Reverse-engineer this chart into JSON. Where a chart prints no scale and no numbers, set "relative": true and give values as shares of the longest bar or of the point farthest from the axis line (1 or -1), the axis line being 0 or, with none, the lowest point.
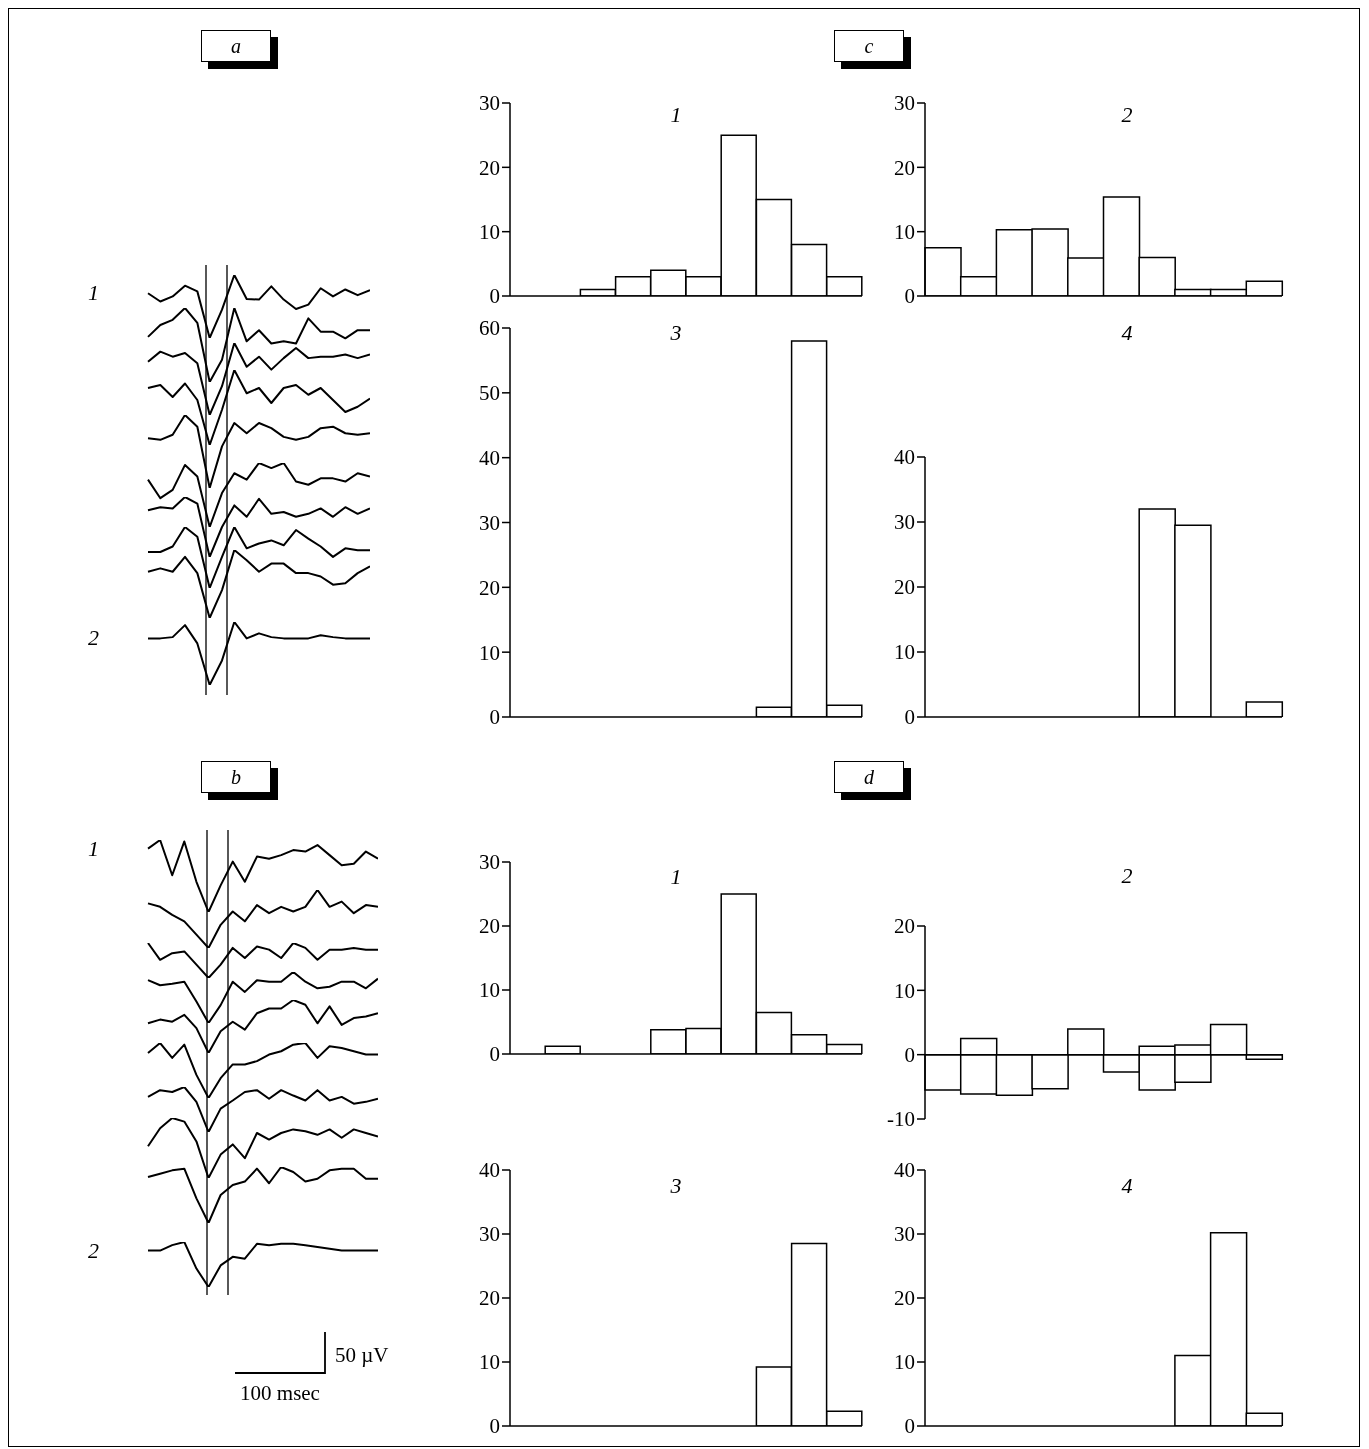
{
  "chart_data": [
    {
      "type": "line",
      "title": "a",
      "relative": true,
      "categories": [
        null,
        null,
        null,
        null,
        null,
        null,
        null,
        null,
        null,
        null,
        null,
        null,
        null,
        null,
        null,
        null,
        null,
        null,
        null
      ],
      "series": [
        {
          "name": "1",
          "color": "#000000",
          "values": [
            0.71,
            0.58,
            0.66,
            0.83,
            0.74,
            0,
            0.45,
            1,
            0.62,
            0.61,
            0.82,
            0.61,
            0.46,
            0.53,
            0.79,
            0.66,
            0.77,
            0.68,
            0.76
          ]
        }
      ]
    },
    {
      "type": "line",
      "relative": true,
      "categories": [
        null,
        null,
        null,
        null,
        null,
        null,
        null,
        null,
        null,
        null,
        null,
        null,
        null,
        null,
        null,
        null,
        null,
        null,
        null
      ],
      "series": [
        {
          "color": "#000000",
          "values": [
            0.61,
            0.77,
            0.84,
            1,
            0.8,
            0,
            0.3,
            1,
            0.55,
            0.7,
            0.52,
            0.55,
            0.52,
            0.86,
            0.68,
            0.68,
            0.59,
            0.7,
            0.7
          ]
        }
      ]
    },
    {
      "type": "line",
      "relative": true,
      "categories": [
        null,
        null,
        null,
        null,
        null,
        null,
        null,
        null,
        null,
        null,
        null,
        null,
        null,
        null,
        null,
        null,
        null,
        null,
        null
      ],
      "series": [
        {
          "color": "#000000",
          "values": [
            0.74,
            0.88,
            0.81,
            0.86,
            0.72,
            0,
            0.4,
            1,
            0.67,
            0.81,
            0.63,
            0.79,
            0.93,
            0.79,
            0.81,
            0.81,
            0.84,
            0.79,
            0.84
          ]
        }
      ]
    },
    {
      "type": "line",
      "relative": true,
      "categories": [
        null,
        null,
        null,
        null,
        null,
        null,
        null,
        null,
        null,
        null,
        null,
        null,
        null,
        null,
        null,
        null,
        null,
        null,
        null
      ],
      "series": [
        {
          "color": "#000000",
          "values": [
            0.76,
            0.8,
            0.64,
            0.82,
            0.6,
            0,
            0.47,
            1,
            0.69,
            0.76,
            0.56,
            0.76,
            0.8,
            0.67,
            0.76,
            0.6,
            0.44,
            0.51,
            0.62
          ]
        }
      ]
    },
    {
      "type": "line",
      "relative": true,
      "categories": [
        null,
        null,
        null,
        null,
        null,
        null,
        null,
        null,
        null,
        null,
        null,
        null,
        null,
        null,
        null,
        null,
        null,
        null,
        null
      ],
      "series": [
        {
          "color": "#000000",
          "values": [
            0.68,
            0.66,
            0.73,
            1,
            0.84,
            0,
            0.57,
            0.89,
            0.75,
            0.89,
            0.82,
            0.7,
            0.66,
            0.7,
            0.82,
            0.84,
            0.75,
            0.73,
            0.75
          ]
        }
      ]
    },
    {
      "type": "line",
      "relative": true,
      "categories": [
        null,
        null,
        null,
        null,
        null,
        null,
        null,
        null,
        null,
        null,
        null,
        null,
        null,
        null,
        null,
        null,
        null,
        null,
        null
      ],
      "series": [
        {
          "color": "#000000",
          "values": [
            0.74,
            0.45,
            0.58,
            0.97,
            0.79,
            0,
            0.53,
            0.84,
            0.74,
            1,
            0.92,
            1,
            0.71,
            0.66,
            0.76,
            0.76,
            0.71,
            0.84,
            0.79
          ]
        }
      ]
    },
    {
      "type": "line",
      "relative": true,
      "categories": [
        null,
        null,
        null,
        null,
        null,
        null,
        null,
        null,
        null,
        null,
        null,
        null,
        null,
        null,
        null,
        null,
        null,
        null,
        null
      ],
      "series": [
        {
          "color": "#000000",
          "values": [
            0.78,
            0.83,
            0.81,
            1,
            0.89,
            0,
            0.5,
            0.86,
            0.67,
            0.97,
            0.72,
            0.75,
            0.67,
            0.72,
            0.81,
            0.67,
            0.83,
            0.72,
            0.81
          ]
        }
      ]
    },
    {
      "type": "line",
      "relative": true,
      "categories": [
        null,
        null,
        null,
        null,
        null,
        null,
        null,
        null,
        null,
        null,
        null,
        null,
        null,
        null,
        null,
        null,
        null,
        null,
        null
      ],
      "series": [
        {
          "color": "#000000",
          "values": [
            0.59,
            0.59,
            0.68,
            1,
            0.84,
            0,
            0.51,
            1,
            0.65,
            0.73,
            0.78,
            0.7,
            0.95,
            0.81,
            0.68,
            0.51,
            0.65,
            0.62,
            0.62
          ]
        }
      ]
    },
    {
      "type": "line",
      "relative": true,
      "categories": [
        null,
        null,
        null,
        null,
        null,
        null,
        null,
        null,
        null,
        null,
        null,
        null,
        null,
        null,
        null,
        null,
        null,
        null,
        null
      ],
      "series": [
        {
          "color": "#000000",
          "values": [
            0.68,
            0.73,
            0.68,
            0.9,
            0.66,
            0,
            0.41,
            1,
            0.85,
            0.68,
            0.8,
            0.8,
            0.66,
            0.66,
            0.61,
            0.49,
            0.51,
            0.66,
            0.76
          ]
        }
      ]
    },
    {
      "type": "line",
      "relative": true,
      "categories": [
        null,
        null,
        null,
        null,
        null,
        null,
        null,
        null,
        null,
        null,
        null,
        null,
        null,
        null,
        null,
        null,
        null,
        null,
        null
      ],
      "series": [
        {
          "name": "2",
          "color": "#000000",
          "values": [
            0.74,
            0.74,
            0.76,
            0.95,
            0.66,
            0,
            0.39,
            1,
            0.74,
            0.82,
            0.76,
            0.74,
            0.74,
            0.74,
            0.79,
            0.76,
            0.74,
            0.74,
            0.74
          ]
        }
      ]
    },
    {
      "type": "bar",
      "title": "1",
      "annotations": [
        "c"
      ],
      "categories": [
        null,
        null,
        null,
        null,
        null,
        null,
        null,
        null,
        null,
        null
      ],
      "values": [
        0,
        0,
        1,
        3,
        4,
        3,
        25,
        15,
        8,
        3
      ],
      "color": "#ffffff",
      "ylim": [
        0,
        30
      ],
      "yticks": [
        0,
        10,
        20,
        30
      ]
    },
    {
      "type": "bar",
      "title": "2",
      "categories": [
        null,
        null,
        null,
        null,
        null,
        null,
        null,
        null,
        null,
        null
      ],
      "values": [
        7.5,
        3,
        10.3,
        10.4,
        5.9,
        15.4,
        6,
        1,
        1,
        2.3
      ],
      "color": "#ffffff",
      "ylim": [
        0,
        30
      ],
      "yticks": [
        0,
        10,
        20,
        30
      ]
    },
    {
      "type": "bar",
      "title": "3",
      "categories": [
        null,
        null,
        null,
        null,
        null,
        null,
        null,
        null,
        null,
        null
      ],
      "values": [
        0,
        0,
        0,
        0,
        0,
        0,
        0,
        1.5,
        58,
        1.8
      ],
      "color": "#ffffff",
      "ylim": [
        0,
        60
      ],
      "yticks": [
        0,
        10,
        20,
        30,
        40,
        50,
        60
      ]
    },
    {
      "type": "bar",
      "title": "4",
      "categories": [
        null,
        null,
        null,
        null,
        null,
        null,
        null,
        null,
        null,
        null
      ],
      "values": [
        0,
        0,
        0,
        0,
        0,
        0,
        32,
        29.5,
        0,
        2.3
      ],
      "color": "#ffffff",
      "ylim": [
        0,
        40
      ],
      "yticks": [
        0,
        10,
        20,
        30,
        40
      ]
    },
    {
      "type": "line",
      "title": "b",
      "relative": true,
      "categories": [
        null,
        null,
        null,
        null,
        null,
        null,
        null,
        null,
        null,
        null,
        null,
        null,
        null,
        null,
        null,
        null,
        null,
        null,
        null,
        null
      ],
      "series": [
        {
          "name": "1",
          "color": "#000000",
          "values": [
            0.88,
            1,
            0.51,
            0.98,
            0.42,
            0,
            0.37,
            0.7,
            0.42,
            0.77,
            0.74,
            0.79,
            0.86,
            0.84,
            0.93,
            0.79,
            0.65,
            0.67,
            0.84,
            0.74
          ]
        }
      ]
    },
    {
      "type": "line",
      "relative": true,
      "categories": [
        null,
        null,
        null,
        null,
        null,
        null,
        null,
        null,
        null,
        null,
        null,
        null,
        null,
        null,
        null,
        null,
        null,
        null,
        null,
        null
      ],
      "series": [
        {
          "color": "#000000",
          "values": [
            0.77,
            0.71,
            0.57,
            0.46,
            0.23,
            0,
            0.4,
            0.63,
            0.46,
            0.74,
            0.6,
            0.71,
            0.63,
            0.71,
            1,
            0.71,
            0.8,
            0.6,
            0.74,
            0.71
          ]
        }
      ]
    },
    {
      "type": "line",
      "relative": true,
      "categories": [
        null,
        null,
        null,
        null,
        null,
        null,
        null,
        null,
        null,
        null,
        null,
        null,
        null,
        null,
        null,
        null,
        null,
        null,
        null,
        null
      ],
      "series": [
        {
          "color": "#000000",
          "values": [
            1,
            0.52,
            0.71,
            0.76,
            0.38,
            0,
            0.38,
            0.86,
            0.57,
            0.9,
            0.81,
            0.57,
            1,
            0.86,
            0.52,
            0.81,
            0.81,
            0.86,
            0.81,
            0.81
          ]
        }
      ]
    },
    {
      "type": "line",
      "relative": true,
      "categories": [
        null,
        null,
        null,
        null,
        null,
        null,
        null,
        null,
        null,
        null,
        null,
        null,
        null,
        null,
        null,
        null,
        null,
        null,
        null,
        null
      ],
      "series": [
        {
          "color": "#000000",
          "values": [
            0.84,
            0.74,
            0.77,
            0.81,
            0.42,
            0,
            0.35,
            0.81,
            0.61,
            0.84,
            0.81,
            0.81,
            1,
            0.81,
            0.68,
            0.71,
            0.81,
            0.81,
            0.68,
            0.87
          ]
        }
      ]
    },
    {
      "type": "line",
      "relative": true,
      "categories": [
        null,
        null,
        null,
        null,
        null,
        null,
        null,
        null,
        null,
        null,
        null,
        null,
        null,
        null,
        null,
        null,
        null,
        null,
        null,
        null
      ],
      "series": [
        {
          "color": "#000000",
          "values": [
            0.56,
            0.63,
            0.59,
            0.72,
            0.47,
            0,
            0.41,
            0.59,
            0.44,
            0.75,
            0.84,
            0.84,
            1,
            0.91,
            0.56,
            0.88,
            0.53,
            0.66,
            0.69,
            0.75
          ]
        }
      ]
    },
    {
      "type": "line",
      "relative": true,
      "categories": [
        null,
        null,
        null,
        null,
        null,
        null,
        null,
        null,
        null,
        null,
        null,
        null,
        null,
        null,
        null,
        null,
        null,
        null,
        null,
        null
      ],
      "series": [
        {
          "color": "#000000",
          "values": [
            0.82,
            1,
            0.73,
            0.97,
            0.42,
            0,
            0.36,
            0.61,
            0.61,
            0.67,
            0.79,
            0.85,
            0.97,
            1,
            0.73,
            0.94,
            0.91,
            0.85,
            0.79,
            0.79
          ]
        }
      ]
    },
    {
      "type": "line",
      "relative": true,
      "categories": [
        null,
        null,
        null,
        null,
        null,
        null,
        null,
        null,
        null,
        null,
        null,
        null,
        null,
        null,
        null,
        null,
        null,
        null,
        null,
        null
      ],
      "series": [
        {
          "color": "#000000",
          "values": [
            0.78,
            0.93,
            0.89,
            1,
            0.67,
            0,
            0.52,
            0.7,
            0.89,
            0.93,
            0.74,
            0.93,
            0.81,
            0.7,
            0.93,
            0.7,
            0.78,
            0.63,
            0.67,
            0.74
          ]
        }
      ]
    },
    {
      "type": "line",
      "relative": true,
      "categories": [
        null,
        null,
        null,
        null,
        null,
        null,
        null,
        null,
        null,
        null,
        null,
        null,
        null,
        null,
        null,
        null,
        null,
        null,
        null,
        null
      ],
      "series": [
        {
          "color": "#000000",
          "values": [
            0.53,
            0.83,
            1,
            0.94,
            0.61,
            0,
            0.39,
            0.56,
            0.33,
            0.75,
            0.64,
            0.75,
            0.81,
            0.78,
            0.72,
            0.81,
            0.67,
            0.81,
            0.75,
            0.69
          ]
        }
      ]
    },
    {
      "type": "line",
      "relative": true,
      "categories": [
        null,
        null,
        null,
        null,
        null,
        null,
        null,
        null,
        null,
        null,
        null,
        null,
        null,
        null,
        null,
        null,
        null,
        null,
        null,
        null
      ],
      "series": [
        {
          "color": "#000000",
          "values": [
            0.82,
            0.88,
            0.94,
            0.97,
            0.44,
            0,
            0.5,
            0.68,
            0.74,
            0.97,
            0.71,
            1,
            0.91,
            0.74,
            0.79,
            0.94,
            0.97,
            0.97,
            0.79,
            0.79
          ]
        }
      ]
    },
    {
      "type": "line",
      "relative": true,
      "annotations": [
        "50 µV",
        "100 msec"
      ],
      "categories": [
        null,
        null,
        null,
        null,
        null,
        null,
        null,
        null,
        null,
        null,
        null,
        null,
        null,
        null,
        null,
        null,
        null,
        null,
        null,
        null
      ],
      "series": [
        {
          "name": "2",
          "color": "#000000",
          "values": [
            0.81,
            0.81,
            0.93,
            1,
            0.41,
            0,
            0.48,
            0.67,
            0.63,
            0.96,
            0.93,
            0.96,
            0.96,
            0.93,
            0.89,
            0.85,
            0.81,
            0.81,
            0.81,
            0.81
          ]
        }
      ]
    },
    {
      "type": "bar",
      "title": "1",
      "annotations": [
        "d"
      ],
      "categories": [
        null,
        null,
        null,
        null,
        null,
        null,
        null,
        null,
        null,
        null
      ],
      "values": [
        0,
        1.2,
        0,
        0,
        3.8,
        4,
        25,
        6.5,
        3,
        1.5
      ],
      "color": "#ffffff",
      "ylim": [
        0,
        30
      ],
      "yticks": [
        0,
        10,
        20,
        30
      ]
    },
    {
      "type": "bar",
      "title": "2",
      "stacked": true,
      "categories": [
        null,
        null,
        null,
        null,
        null,
        null,
        null,
        null,
        null,
        null
      ],
      "ylim": [
        -10,
        20
      ],
      "yticks": [
        -10,
        0,
        10,
        20
      ],
      "series": [
        {
          "color": "#ffffff",
          "values": [
            null,
            2.5,
            null,
            null,
            4,
            null,
            1.3,
            1.5,
            4.7,
            null
          ]
        },
        {
          "color": "#ffffff",
          "values": [
            -5.5,
            -6.1,
            -6.3,
            -5.3,
            null,
            -2.7,
            -5.5,
            -4.3,
            null,
            -0.7
          ]
        }
      ]
    },
    {
      "type": "bar",
      "title": "3",
      "categories": [
        null,
        null,
        null,
        null,
        null,
        null,
        null,
        null,
        null,
        null
      ],
      "values": [
        0,
        0,
        0,
        0,
        0,
        0,
        0,
        9.2,
        28.5,
        2.3
      ],
      "color": "#ffffff",
      "ylim": [
        0,
        40
      ],
      "yticks": [
        0,
        10,
        20,
        30,
        40
      ]
    },
    {
      "type": "bar",
      "title": "4",
      "categories": [
        null,
        null,
        null,
        null,
        null,
        null,
        null,
        null,
        null,
        null
      ],
      "values": [
        0,
        0,
        0,
        0,
        0,
        0,
        0,
        11,
        30.2,
        2
      ],
      "color": "#ffffff",
      "ylim": [
        0,
        40
      ],
      "yticks": [
        0,
        10,
        20,
        30,
        40
      ]
    }
  ]
}
